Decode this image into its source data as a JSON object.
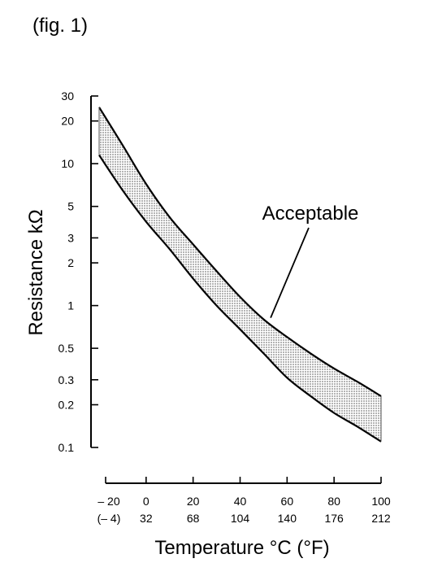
{
  "fig_label": "(fig. 1)",
  "chart_data": {
    "type": "area",
    "title": "",
    "xlabel": "Temperature °C (°F)",
    "ylabel": "Resistance kΩ",
    "y_scale": "log",
    "xlim": [
      -20,
      100
    ],
    "ylim": [
      0.1,
      30
    ],
    "x_ticks": [
      {
        "c": -20,
        "c_label": "– 20",
        "f_label": "(– 4)"
      },
      {
        "c": 0,
        "c_label": "0",
        "f_label": "32"
      },
      {
        "c": 20,
        "c_label": "20",
        "f_label": "68"
      },
      {
        "c": 40,
        "c_label": "40",
        "f_label": "104"
      },
      {
        "c": 60,
        "c_label": "60",
        "f_label": "140"
      },
      {
        "c": 80,
        "c_label": "80",
        "f_label": "176"
      },
      {
        "c": 100,
        "c_label": "100",
        "f_label": "212"
      }
    ],
    "y_ticks": [
      {
        "v": 30,
        "label": "30"
      },
      {
        "v": 20,
        "label": "20"
      },
      {
        "v": 10,
        "label": "10"
      },
      {
        "v": 5,
        "label": "5"
      },
      {
        "v": 3,
        "label": "3"
      },
      {
        "v": 2,
        "label": "2"
      },
      {
        "v": 1,
        "label": "1"
      },
      {
        "v": 0.5,
        "label": "0.5"
      },
      {
        "v": 0.3,
        "label": "0.3"
      },
      {
        "v": 0.2,
        "label": "0.2"
      },
      {
        "v": 0.1,
        "label": "0.1"
      }
    ],
    "series": [
      {
        "role": "upper",
        "x": [
          -20,
          -10,
          0,
          10,
          20,
          30,
          40,
          50,
          60,
          70,
          80,
          90,
          100
        ],
        "y": [
          25,
          13.5,
          7.2,
          4.2,
          2.7,
          1.75,
          1.15,
          0.8,
          0.6,
          0.46,
          0.36,
          0.29,
          0.23
        ]
      },
      {
        "role": "lower",
        "x": [
          -20,
          -10,
          0,
          10,
          20,
          30,
          40,
          50,
          60,
          70,
          80,
          90,
          100
        ],
        "y": [
          11.5,
          6.5,
          3.9,
          2.5,
          1.55,
          1.0,
          0.68,
          0.46,
          0.31,
          0.23,
          0.175,
          0.14,
          0.11
        ]
      }
    ],
    "annotations": [
      {
        "text": "Acceptable",
        "points_to": {
          "x": 53,
          "y": 0.82
        }
      }
    ],
    "grid": false,
    "band_fill": "#b4b4b4",
    "line_color": "#000000"
  }
}
